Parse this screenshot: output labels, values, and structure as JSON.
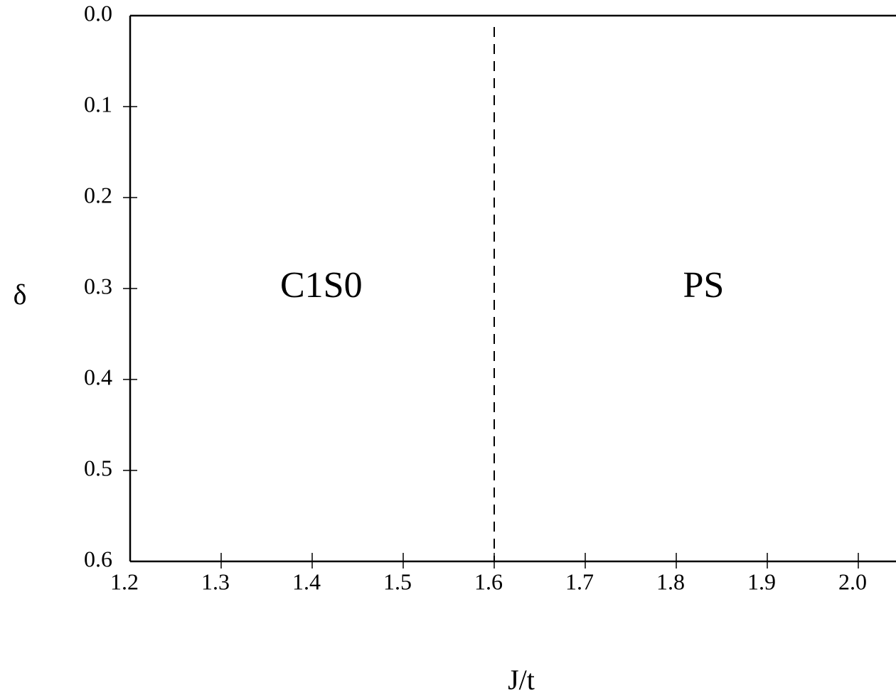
{
  "chart_data": {
    "type": "line",
    "xlabel": "J/t",
    "ylabel": "δ",
    "xlim": [
      1.2,
      2.0
    ],
    "ylim": [
      0.6,
      0.0
    ],
    "y_inverted": true,
    "x_ticks": [
      "1.2",
      "1.3",
      "1.4",
      "1.5",
      "1.6",
      "1.7",
      "1.8",
      "1.9",
      "2.0"
    ],
    "y_ticks": [
      "0.0",
      "0.1",
      "0.2",
      "0.3",
      "0.4",
      "0.5",
      "0.6"
    ],
    "boundaries": [
      {
        "x": 1.6,
        "y_range": [
          0.0,
          0.6
        ],
        "style": "dashed"
      }
    ],
    "regions": [
      {
        "label": "C1S0",
        "x": 1.41,
        "y": 0.3
      },
      {
        "label": "PS",
        "x": 1.83,
        "y": 0.3
      }
    ],
    "grid": false,
    "legend": "none"
  }
}
